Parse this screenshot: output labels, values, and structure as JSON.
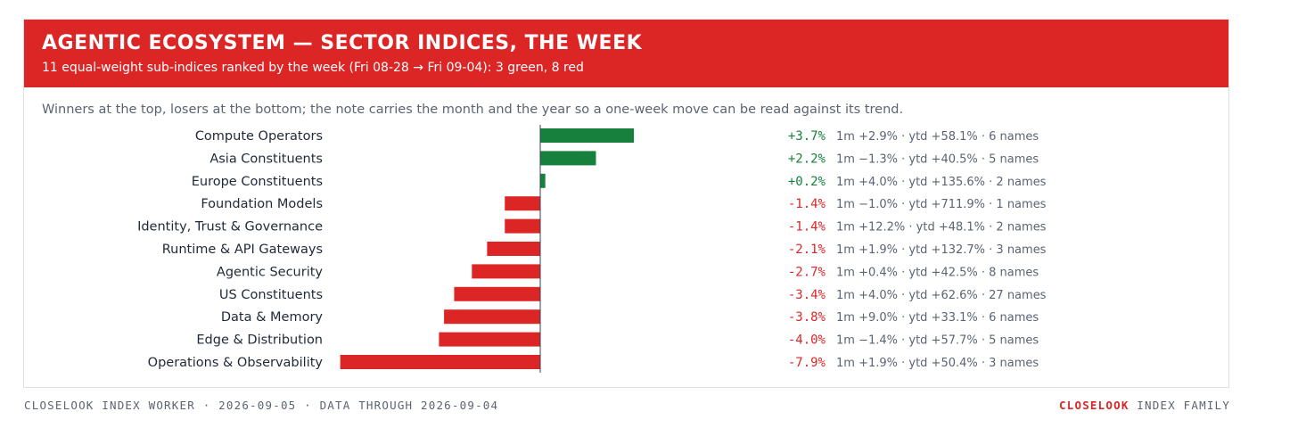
{
  "header": {
    "title": "AGENTIC ECOSYSTEM — SECTOR INDICES, THE WEEK",
    "subtitle": "11 equal-weight sub-indices ranked by the week (Fri 08-28 → Fri 09-04): 3 green, 8 red"
  },
  "note": "Winners at the top, losers at the bottom; the note carries the month and the year so a one-week move can be read against its trend.",
  "colors": {
    "up": "#16803c",
    "down": "#dc2626",
    "header": "#dc2626"
  },
  "chart_data": {
    "type": "bar",
    "orientation": "horizontal",
    "grid": false,
    "categories": [
      "Compute Operators",
      "Asia Constituents",
      "Europe Constituents",
      "Foundation Models",
      "Identity, Trust & Governance",
      "Runtime & API Gateways",
      "Agentic Security",
      "US Constituents",
      "Data & Memory",
      "Edge & Distribution",
      "Operations & Observability"
    ],
    "values": [
      3.7,
      2.2,
      0.2,
      -1.4,
      -1.4,
      -2.1,
      -2.7,
      -3.4,
      -3.8,
      -4.0,
      -7.9
    ],
    "value_labels": [
      "+3.7%",
      "+2.2%",
      "+0.2%",
      "-1.4%",
      "-1.4%",
      "-2.1%",
      "-2.7%",
      "-3.4%",
      "-3.8%",
      "-4.0%",
      "-7.9%"
    ],
    "annotations": [
      "1m +2.9% · ytd +58.1% · 6 names",
      "1m −1.3% · ytd +40.5% · 5 names",
      "1m +4.0% · ytd +135.6% · 2 names",
      "1m −1.0% · ytd +711.9% · 1 names",
      "1m +12.2% · ytd +48.1% · 2 names",
      "1m +1.9% · ytd +132.7% · 3 names",
      "1m +0.4% · ytd +42.5% · 8 names",
      "1m +4.0% · ytd +62.6% · 27 names",
      "1m +9.0% · ytd +33.1% · 6 names",
      "1m −1.4% · ytd +57.7% · 5 names",
      "1m +1.9% · ytd +50.4% · 3 names"
    ]
  },
  "footer": {
    "left": "CLOSELOOK INDEX WORKER · 2026-09-05 · DATA THROUGH 2026-09-04",
    "brand": "CLOSELOOK",
    "right_rest": " INDEX FAMILY"
  }
}
